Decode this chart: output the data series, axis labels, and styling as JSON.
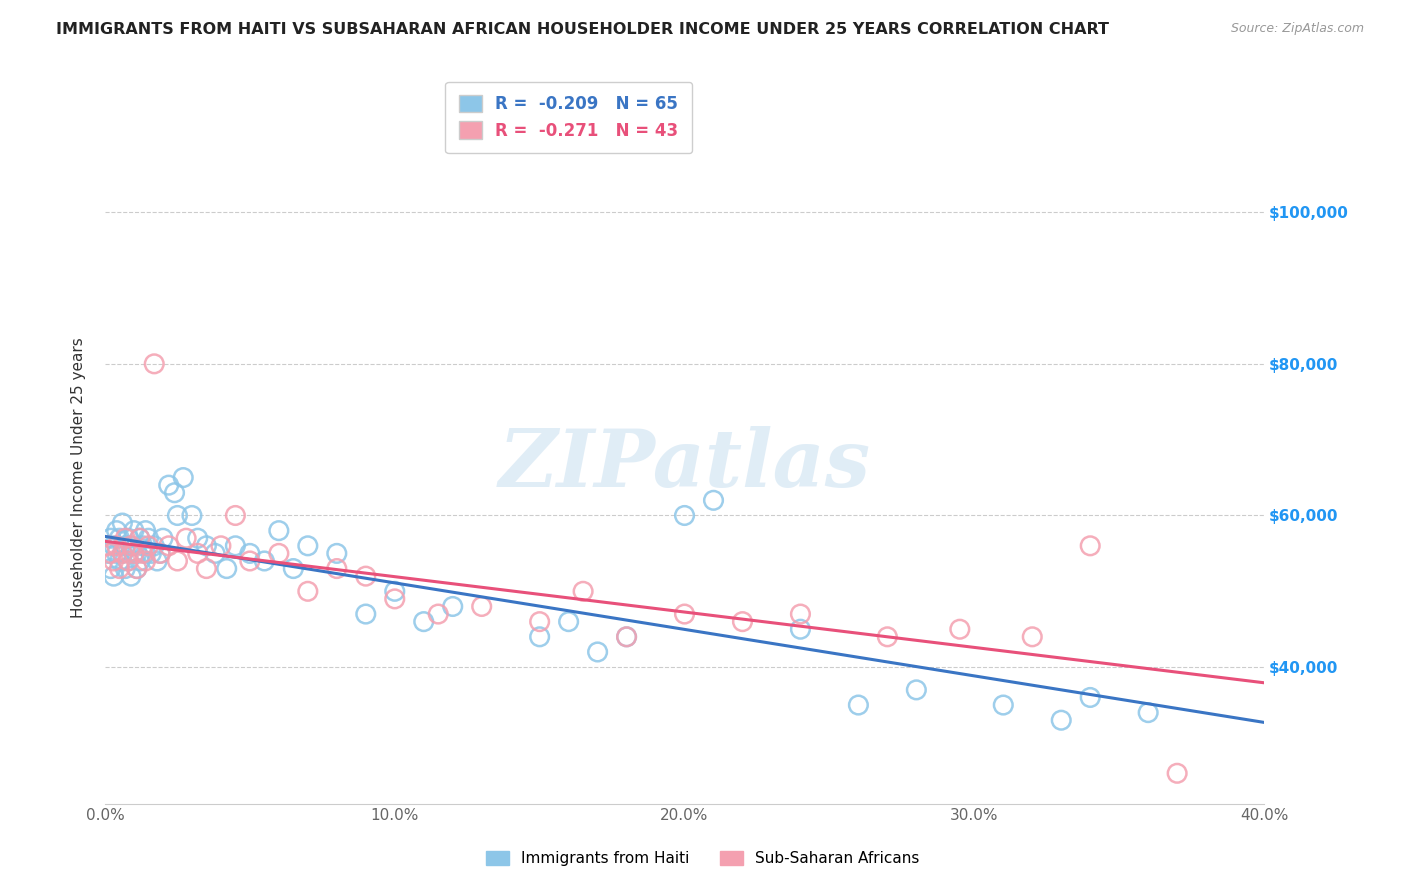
{
  "title": "IMMIGRANTS FROM HAITI VS SUBSAHARAN AFRICAN HOUSEHOLDER INCOME UNDER 25 YEARS CORRELATION CHART",
  "source": "Source: ZipAtlas.com",
  "ylabel": "Householder Income Under 25 years",
  "xlim": [
    0.0,
    0.4
  ],
  "ylim": [
    22000,
    108000
  ],
  "xtick_labels": [
    "0.0%",
    "10.0%",
    "20.0%",
    "30.0%",
    "40.0%"
  ],
  "xtick_vals": [
    0.0,
    0.1,
    0.2,
    0.3,
    0.4
  ],
  "ytick_labels": [
    "$40,000",
    "$60,000",
    "$80,000",
    "$100,000"
  ],
  "ytick_vals": [
    40000,
    60000,
    80000,
    100000
  ],
  "haiti_R": -0.209,
  "haiti_N": 65,
  "subsaharan_R": -0.271,
  "subsaharan_N": 43,
  "haiti_color": "#8dc6e8",
  "subsaharan_color": "#f4a0b0",
  "haiti_line_color": "#3a75c4",
  "subsaharan_line_color": "#e8507a",
  "watermark_text": "ZIPatlas",
  "legend_labels": [
    "Immigrants from Haiti",
    "Sub-Saharan Africans"
  ],
  "haiti_scatter_x": [
    0.001,
    0.002,
    0.002,
    0.003,
    0.003,
    0.004,
    0.004,
    0.005,
    0.005,
    0.006,
    0.006,
    0.007,
    0.007,
    0.008,
    0.008,
    0.009,
    0.009,
    0.01,
    0.01,
    0.011,
    0.011,
    0.012,
    0.012,
    0.013,
    0.014,
    0.014,
    0.015,
    0.016,
    0.017,
    0.018,
    0.019,
    0.02,
    0.022,
    0.024,
    0.025,
    0.027,
    0.03,
    0.032,
    0.035,
    0.038,
    0.042,
    0.045,
    0.05,
    0.055,
    0.06,
    0.065,
    0.07,
    0.08,
    0.09,
    0.1,
    0.11,
    0.12,
    0.15,
    0.16,
    0.17,
    0.18,
    0.2,
    0.21,
    0.24,
    0.26,
    0.28,
    0.31,
    0.33,
    0.34,
    0.36
  ],
  "haiti_scatter_y": [
    55000,
    57000,
    53000,
    56000,
    52000,
    55000,
    58000,
    57000,
    54000,
    55000,
    59000,
    56000,
    53000,
    57000,
    54000,
    56000,
    52000,
    55000,
    58000,
    55000,
    53000,
    57000,
    54000,
    56000,
    55000,
    58000,
    57000,
    55000,
    56000,
    54000,
    55000,
    57000,
    64000,
    63000,
    60000,
    65000,
    60000,
    57000,
    56000,
    55000,
    53000,
    56000,
    55000,
    54000,
    58000,
    53000,
    56000,
    55000,
    47000,
    50000,
    46000,
    48000,
    44000,
    46000,
    42000,
    44000,
    60000,
    62000,
    45000,
    35000,
    37000,
    35000,
    33000,
    36000,
    34000
  ],
  "subsaharan_scatter_x": [
    0.001,
    0.002,
    0.003,
    0.004,
    0.005,
    0.006,
    0.007,
    0.008,
    0.009,
    0.01,
    0.011,
    0.012,
    0.013,
    0.014,
    0.015,
    0.017,
    0.019,
    0.022,
    0.025,
    0.028,
    0.032,
    0.035,
    0.04,
    0.045,
    0.05,
    0.06,
    0.07,
    0.08,
    0.09,
    0.1,
    0.115,
    0.13,
    0.15,
    0.165,
    0.18,
    0.2,
    0.22,
    0.24,
    0.27,
    0.295,
    0.32,
    0.34,
    0.37
  ],
  "subsaharan_scatter_y": [
    56000,
    55000,
    54000,
    56000,
    53000,
    55000,
    57000,
    54000,
    56000,
    55000,
    53000,
    57000,
    55000,
    54000,
    56000,
    80000,
    55000,
    56000,
    54000,
    57000,
    55000,
    53000,
    56000,
    60000,
    54000,
    55000,
    50000,
    53000,
    52000,
    49000,
    47000,
    48000,
    46000,
    50000,
    44000,
    47000,
    46000,
    47000,
    44000,
    45000,
    44000,
    56000,
    26000
  ]
}
